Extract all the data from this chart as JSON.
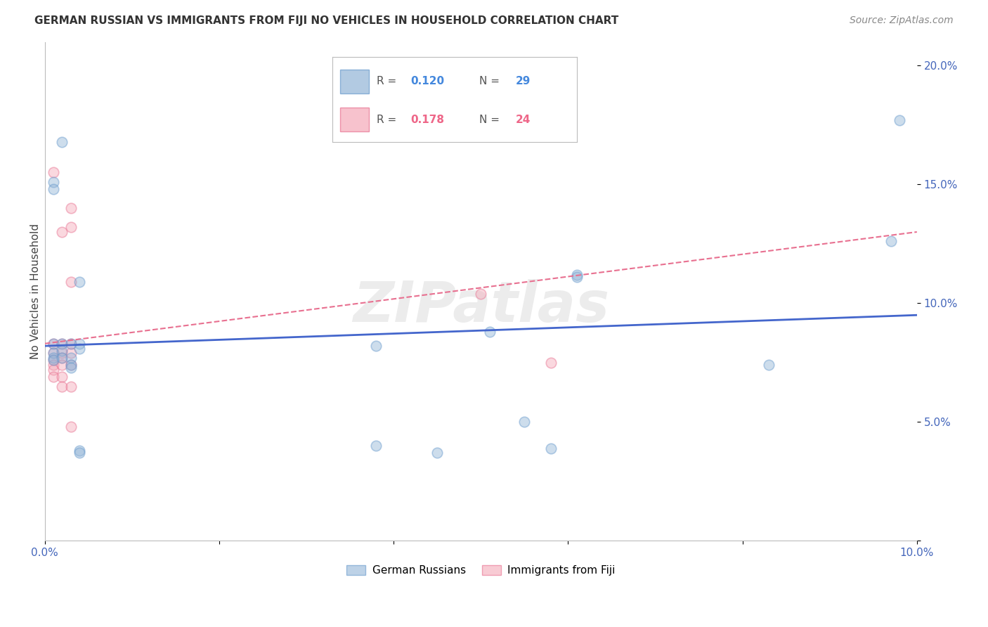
{
  "title": "GERMAN RUSSIAN VS IMMIGRANTS FROM FIJI NO VEHICLES IN HOUSEHOLD CORRELATION CHART",
  "source": "Source: ZipAtlas.com",
  "ylabel": "No Vehicles in Household",
  "watermark": "ZIPatlas",
  "xmin": 0.0,
  "xmax": 0.1,
  "ymin": 0.0,
  "ymax": 0.21,
  "yticks": [
    0.0,
    0.05,
    0.1,
    0.15,
    0.2
  ],
  "ytick_labels": [
    "",
    "5.0%",
    "10.0%",
    "15.0%",
    "20.0%"
  ],
  "xticks": [
    0.0,
    0.02,
    0.04,
    0.06,
    0.08,
    0.1
  ],
  "xtick_labels": [
    "0.0%",
    "",
    "",
    "",
    "",
    "10.0%"
  ],
  "legend_label1": "German Russians",
  "legend_label2": "Immigrants from Fiji",
  "blue_color": "#92B4D7",
  "pink_color": "#F4A9B8",
  "blue_edge_color": "#6699CC",
  "pink_edge_color": "#E87090",
  "blue_line_color": "#4466CC",
  "pink_line_color": "#E87090",
  "legend_blue_color": "#4488DD",
  "legend_pink_color": "#EE6688",
  "blue_scatter": [
    [
      0.001,
      0.151
    ],
    [
      0.001,
      0.148
    ],
    [
      0.001,
      0.083
    ],
    [
      0.001,
      0.079
    ],
    [
      0.001,
      0.077
    ],
    [
      0.001,
      0.076
    ],
    [
      0.002,
      0.168
    ],
    [
      0.002,
      0.083
    ],
    [
      0.002,
      0.08
    ],
    [
      0.002,
      0.077
    ],
    [
      0.003,
      0.083
    ],
    [
      0.003,
      0.077
    ],
    [
      0.003,
      0.074
    ],
    [
      0.003,
      0.073
    ],
    [
      0.004,
      0.109
    ],
    [
      0.004,
      0.083
    ],
    [
      0.004,
      0.081
    ],
    [
      0.004,
      0.038
    ],
    [
      0.004,
      0.037
    ],
    [
      0.038,
      0.082
    ],
    [
      0.038,
      0.04
    ],
    [
      0.045,
      0.037
    ],
    [
      0.051,
      0.088
    ],
    [
      0.055,
      0.05
    ],
    [
      0.058,
      0.039
    ],
    [
      0.061,
      0.112
    ],
    [
      0.061,
      0.111
    ],
    [
      0.083,
      0.074
    ],
    [
      0.098,
      0.177
    ],
    [
      0.097,
      0.126
    ]
  ],
  "pink_scatter": [
    [
      0.001,
      0.155
    ],
    [
      0.001,
      0.083
    ],
    [
      0.001,
      0.079
    ],
    [
      0.001,
      0.076
    ],
    [
      0.001,
      0.074
    ],
    [
      0.001,
      0.072
    ],
    [
      0.001,
      0.069
    ],
    [
      0.002,
      0.13
    ],
    [
      0.002,
      0.083
    ],
    [
      0.002,
      0.079
    ],
    [
      0.002,
      0.077
    ],
    [
      0.002,
      0.074
    ],
    [
      0.002,
      0.069
    ],
    [
      0.002,
      0.065
    ],
    [
      0.003,
      0.14
    ],
    [
      0.003,
      0.132
    ],
    [
      0.003,
      0.109
    ],
    [
      0.003,
      0.083
    ],
    [
      0.003,
      0.079
    ],
    [
      0.003,
      0.074
    ],
    [
      0.003,
      0.065
    ],
    [
      0.003,
      0.048
    ],
    [
      0.05,
      0.104
    ],
    [
      0.058,
      0.075
    ]
  ],
  "blue_trendline_x": [
    0.0,
    0.1
  ],
  "blue_trendline_y": [
    0.082,
    0.095
  ],
  "pink_trendline_x": [
    0.0,
    0.1
  ],
  "pink_trendline_y": [
    0.083,
    0.13
  ],
  "title_fontsize": 11,
  "axis_label_fontsize": 11,
  "tick_fontsize": 11,
  "source_fontsize": 10,
  "scatter_size": 110,
  "scatter_alpha": 0.45,
  "background_color": "#FFFFFF",
  "grid_color": "#CCCCCC",
  "tick_color": "#4466BB"
}
